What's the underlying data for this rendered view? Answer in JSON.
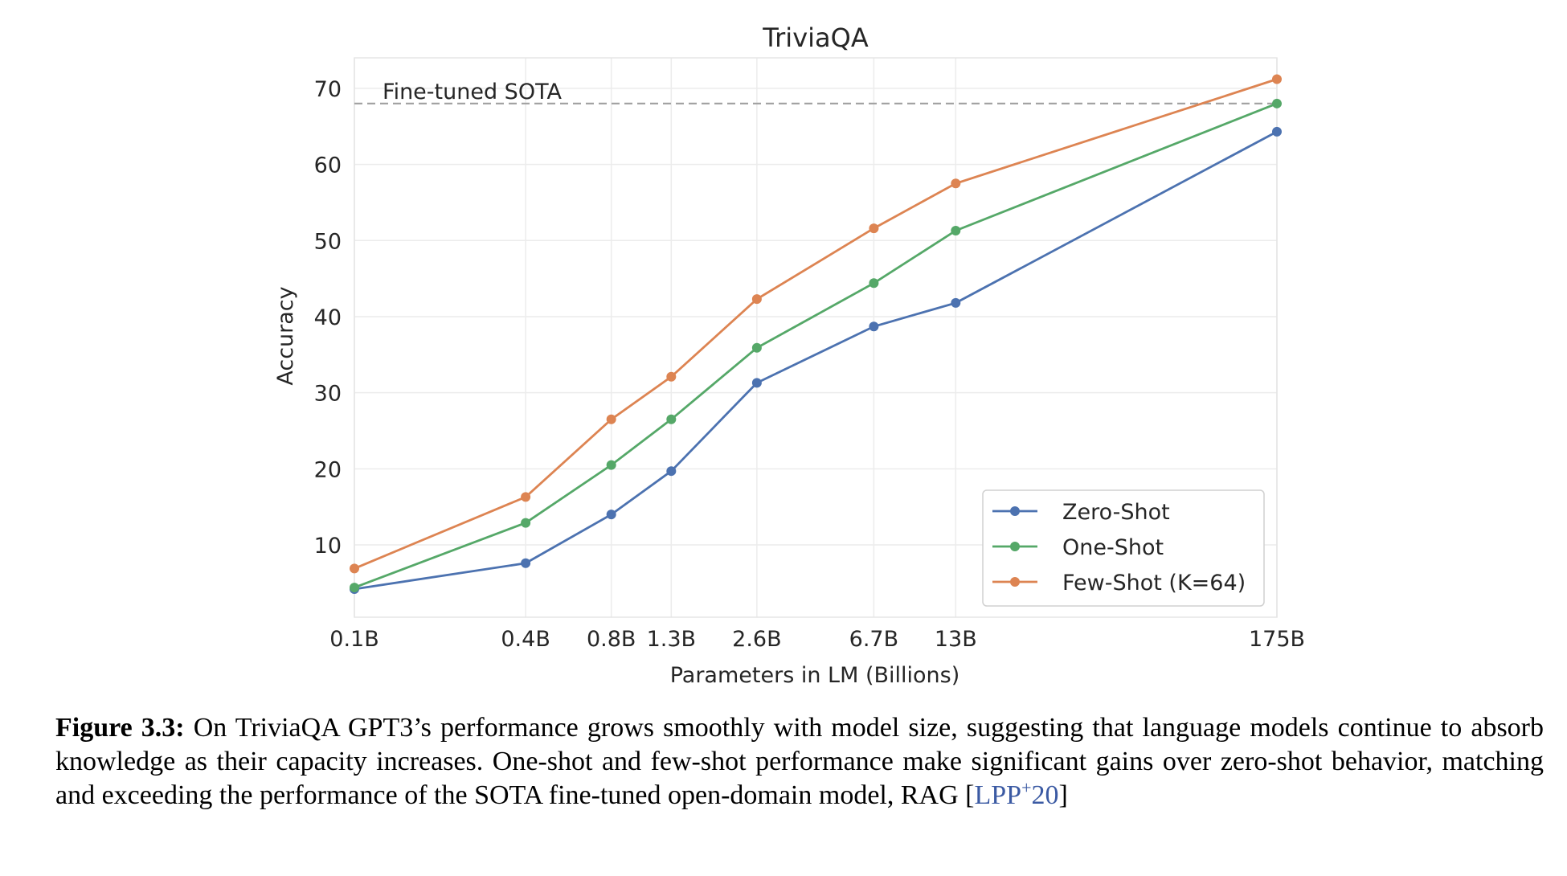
{
  "chart_data": {
    "type": "line",
    "title": "TriviaQA",
    "xlabel": "Parameters in LM (Billions)",
    "ylabel": "Accuracy",
    "x_ticks": [
      "0.1B",
      "0.4B",
      "0.8B",
      "1.3B",
      "2.6B",
      "6.7B",
      "13B",
      "175B"
    ],
    "x_values": [
      0.1,
      0.4,
      0.8,
      1.3,
      2.6,
      6.7,
      13,
      175
    ],
    "x_scale": "log",
    "y_ticks": [
      10,
      20,
      30,
      40,
      50,
      60,
      70
    ],
    "ylim": [
      0.5,
      74
    ],
    "grid": true,
    "legend_position": "lower-right",
    "reference_line": {
      "label": "Fine-tuned SOTA",
      "value": 68.0,
      "style": "dashed"
    },
    "series": [
      {
        "name": "Zero-Shot",
        "color": "#4c72b0",
        "values": [
          4.2,
          7.6,
          14.0,
          19.7,
          31.3,
          38.7,
          41.8,
          64.3
        ]
      },
      {
        "name": "One-Shot",
        "color": "#55a868",
        "values": [
          4.4,
          12.9,
          20.5,
          26.5,
          35.9,
          44.4,
          51.3,
          68.0
        ]
      },
      {
        "name": "Few-Shot (K=64)",
        "color": "#dd8452",
        "values": [
          6.9,
          16.3,
          26.5,
          32.1,
          42.3,
          51.6,
          57.5,
          71.2
        ]
      }
    ]
  },
  "caption": {
    "label": "Figure 3.3:",
    "text": " On TriviaQA GPT3’s performance grows smoothly with model size, suggesting that language models continue to absorb knowledge as their capacity increases. One-shot and few-shot performance make significant gains over zero-shot behavior, matching and exceeding the performance of the SOTA fine-tuned open-domain model, RAG ",
    "cite_open": "[",
    "cite_text": "LPP",
    "cite_sup": "+",
    "cite_year": "20",
    "cite_close": "]"
  }
}
